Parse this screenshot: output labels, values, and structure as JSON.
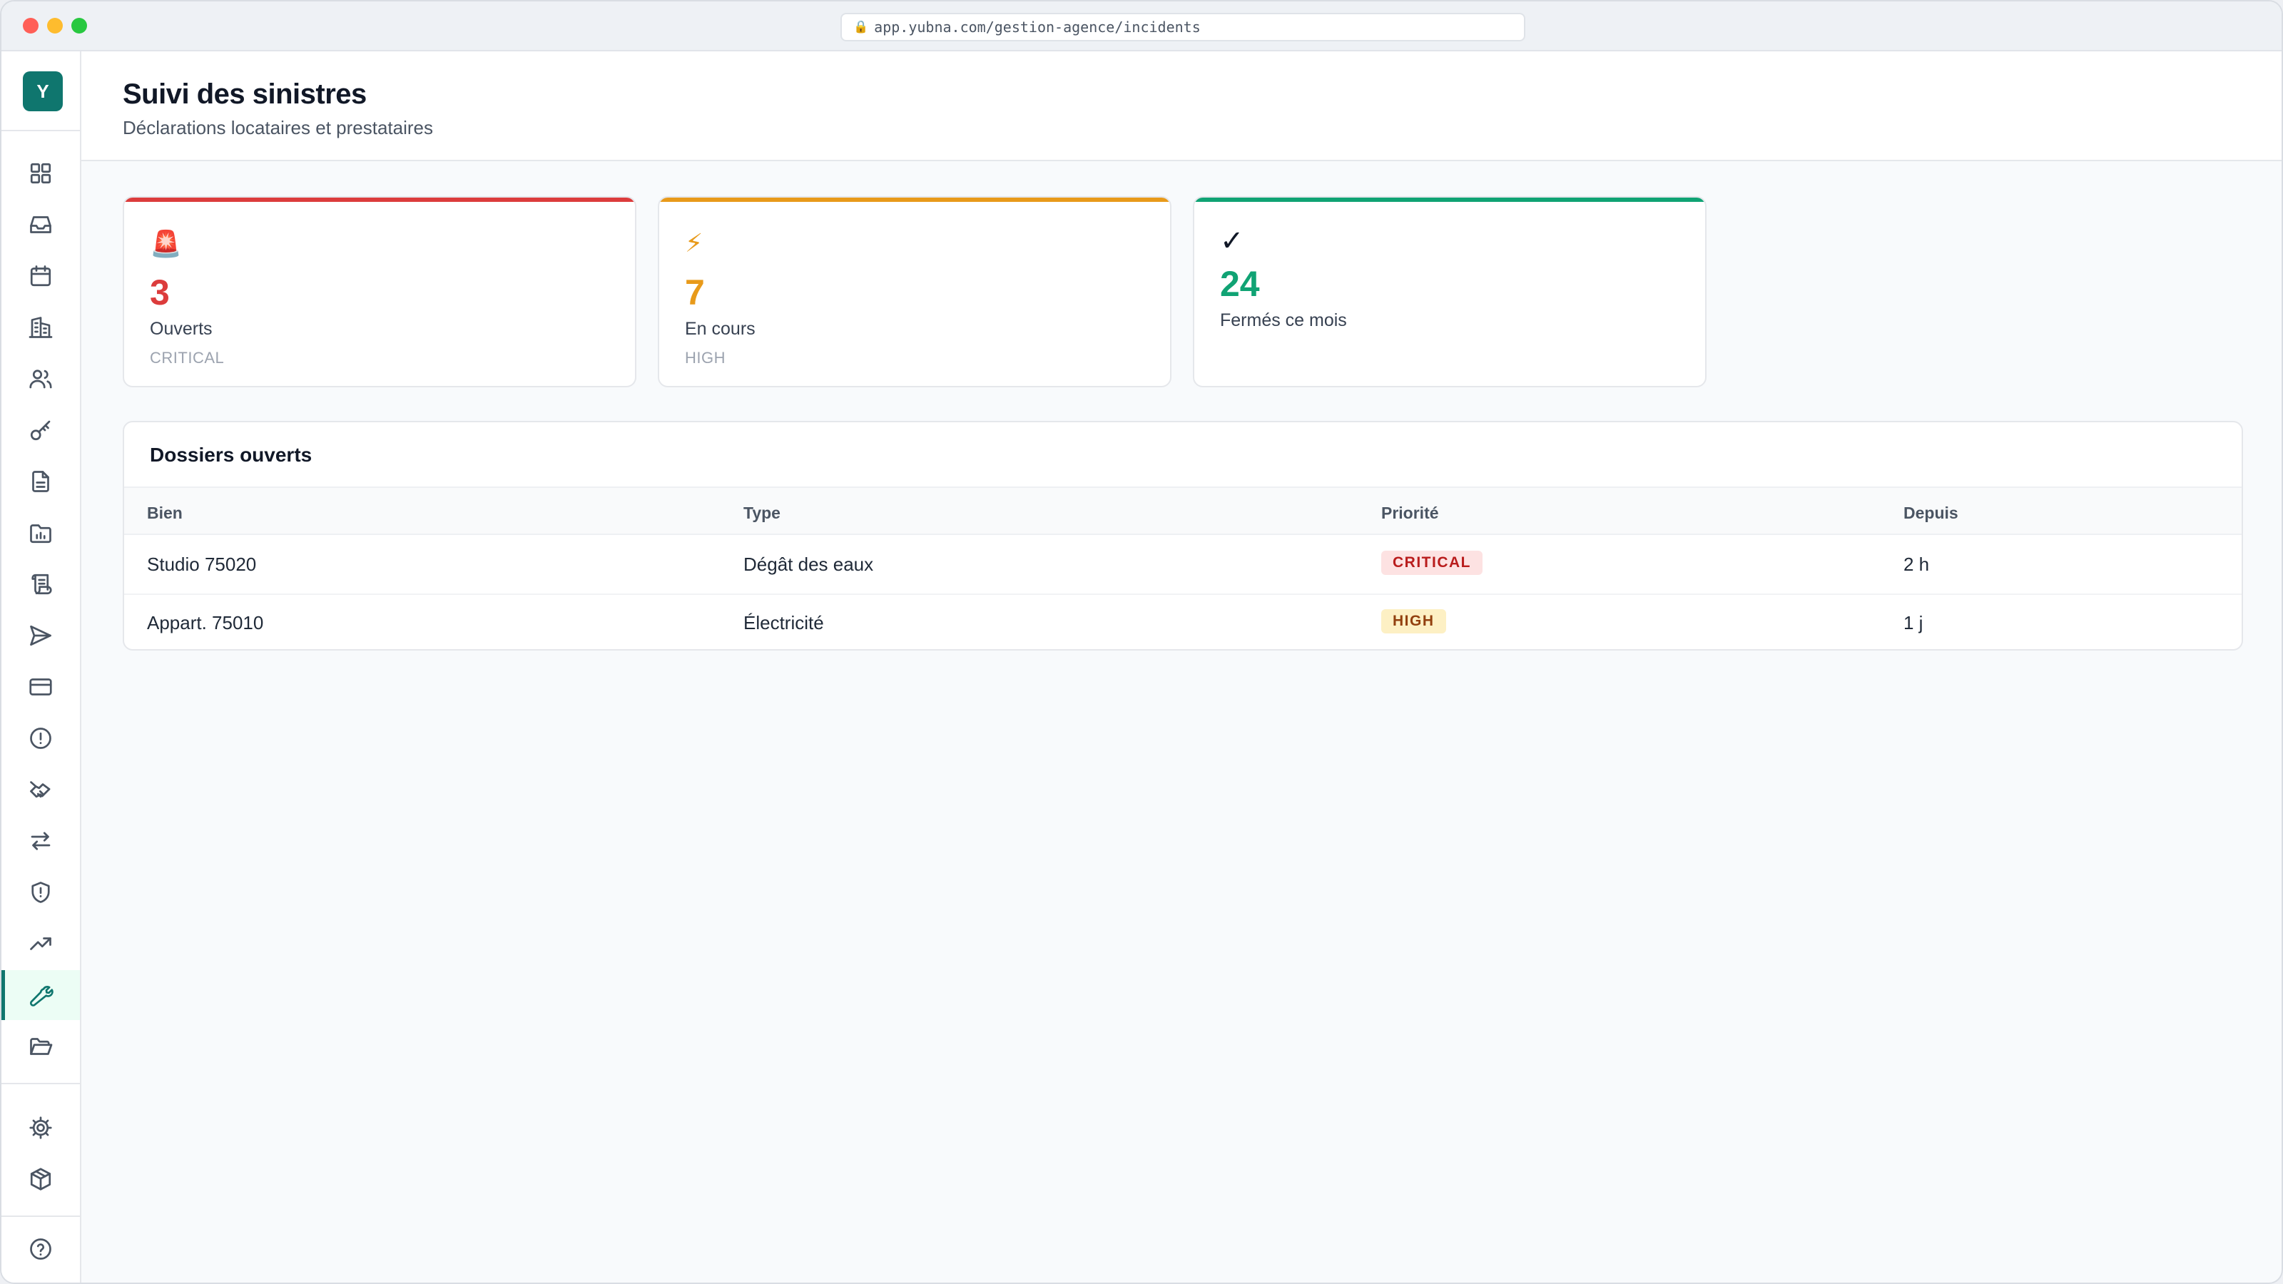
{
  "browser": {
    "url": "app.yubna.com/gestion-agence/incidents"
  },
  "sidebar": {
    "logo": "Y",
    "items": [
      {
        "icon": "dashboard-icon"
      },
      {
        "icon": "inbox-icon"
      },
      {
        "icon": "calendar-icon"
      },
      {
        "icon": "building-icon"
      },
      {
        "icon": "users-icon"
      },
      {
        "icon": "key-icon"
      },
      {
        "icon": "document-icon"
      },
      {
        "icon": "folder-chart-icon"
      },
      {
        "icon": "scroll-icon"
      },
      {
        "icon": "send-icon"
      },
      {
        "icon": "credit-card-icon"
      },
      {
        "icon": "alert-circle-icon"
      },
      {
        "icon": "handshake-icon"
      },
      {
        "icon": "transfer-icon"
      },
      {
        "icon": "shield-alert-icon"
      },
      {
        "icon": "trending-up-icon"
      },
      {
        "icon": "wrench-icon",
        "active": true
      },
      {
        "icon": "folder-open-icon"
      }
    ],
    "bottom_items": [
      {
        "icon": "settings-icon"
      },
      {
        "icon": "package-icon"
      },
      {
        "icon": "help-icon"
      }
    ],
    "accent_color": "#0f766e"
  },
  "header": {
    "title": "Suivi des sinistres",
    "subtitle": "Déclarations locataires et prestataires"
  },
  "stats": [
    {
      "icon": "🚨",
      "value": "3",
      "label": "Ouverts",
      "level": "CRITICAL",
      "color": "#dc3c3c"
    },
    {
      "icon": "⚡",
      "value": "7",
      "label": "En cours",
      "level": "HIGH",
      "color": "#e89a1a"
    },
    {
      "icon": "✓",
      "value": "24",
      "label": "Fermés ce mois",
      "level": "",
      "color": "#10a374"
    }
  ],
  "table": {
    "title": "Dossiers ouverts",
    "columns": [
      "Bien",
      "Type",
      "Priorité",
      "Depuis"
    ],
    "rows": [
      {
        "bien": "Studio 75020",
        "type": "Dégât des eaux",
        "priorite": "CRITICAL",
        "depuis": "2 h"
      },
      {
        "bien": "Appart. 75010",
        "type": "Électricité",
        "priorite": "HIGH",
        "depuis": "1 j"
      }
    ]
  }
}
